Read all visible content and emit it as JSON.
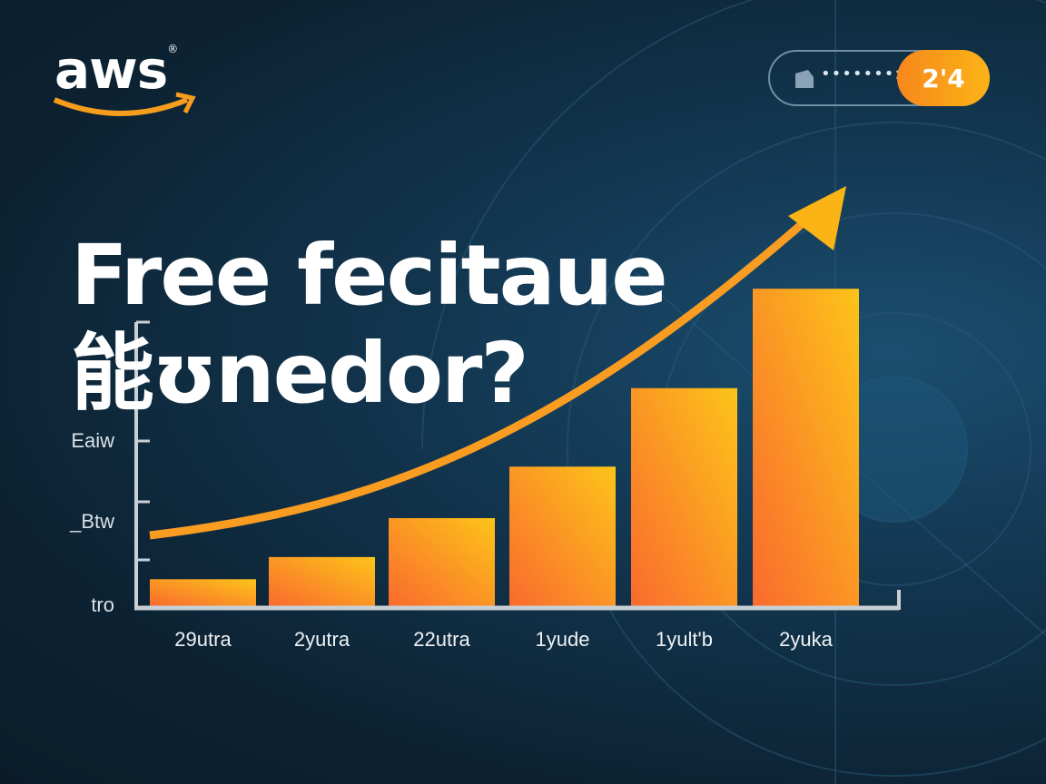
{
  "logo": {
    "text": "aws",
    "mark": "®"
  },
  "badge": {
    "icon": "bookmark-icon",
    "dots": "•••••••:",
    "value": "2'4"
  },
  "headline": {
    "line1": "Free fecitaue",
    "line2": "能ʊnedor?"
  },
  "colors": {
    "bar_start": "#fa6a2e",
    "bar_end": "#fcc419",
    "curve": "#f99c22",
    "background": "#0f2b40"
  },
  "chart_data": {
    "type": "bar",
    "categories": [
      "29utra",
      "2yutra",
      "22utra",
      "1yude",
      "1yult'b",
      "2yuka"
    ],
    "values": [
      0.45,
      0.82,
      1.47,
      2.33,
      3.64,
      5.3
    ],
    "yticks": [
      {
        "label": "tro",
        "value": 0
      },
      {
        "label": "_Btw",
        "value": 1.4
      },
      {
        "label": "Eaiw",
        "value": 2.75
      }
    ],
    "ylim": [
      0,
      6
    ],
    "trend_arrow": true,
    "grid": false
  }
}
